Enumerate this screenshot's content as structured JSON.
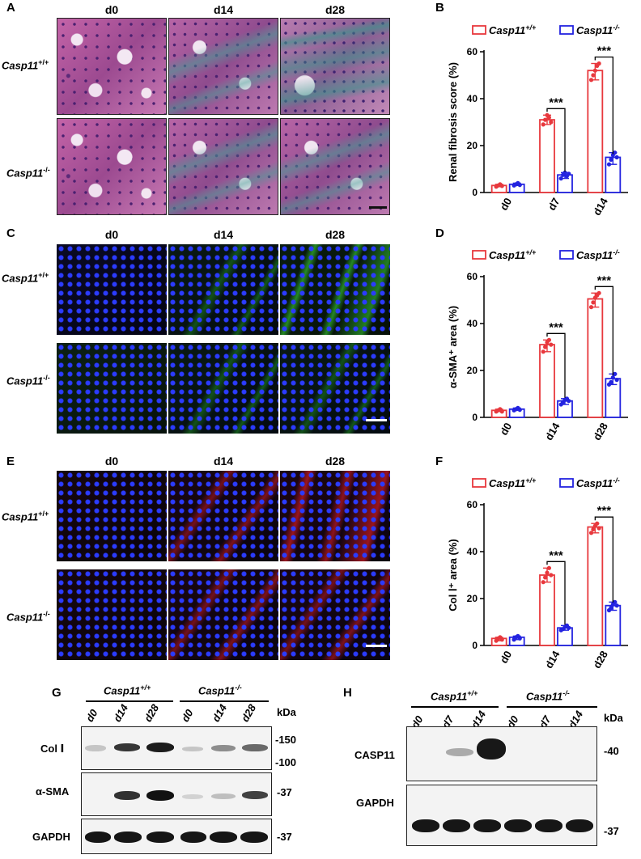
{
  "panels": {
    "A": {
      "label": "A",
      "cols": [
        "d0",
        "d14",
        "d28"
      ],
      "rows": [
        {
          "base": "Casp11",
          "sup": "+/+"
        },
        {
          "base": "Casp11",
          "sup": "-/-"
        }
      ]
    },
    "C": {
      "label": "C",
      "cols": [
        "d0",
        "d14",
        "d28"
      ],
      "rows": [
        {
          "base": "Casp11",
          "sup": "+/+"
        },
        {
          "base": "Casp11",
          "sup": "-/-"
        }
      ]
    },
    "E": {
      "label": "E",
      "cols": [
        "d0",
        "d14",
        "d28"
      ],
      "rows": [
        {
          "base": "Casp11",
          "sup": "+/+"
        },
        {
          "base": "Casp11",
          "sup": "-/-"
        }
      ]
    },
    "G": {
      "label": "G",
      "groups": [
        {
          "base": "Casp11",
          "sup": "+/+"
        },
        {
          "base": "Casp11",
          "sup": "-/-"
        }
      ],
      "lanes": [
        "d0",
        "d14",
        "d28",
        "d0",
        "d14",
        "d28"
      ],
      "unit": "kDa",
      "rows": [
        {
          "name": "Col Ⅰ",
          "markers": [
            "-150",
            "-100"
          ]
        },
        {
          "name": "α-SMA",
          "markers": [
            "-37"
          ]
        },
        {
          "name": "GAPDH",
          "markers": [
            "-37"
          ]
        }
      ]
    },
    "H": {
      "label": "H",
      "groups": [
        {
          "base": "Casp11",
          "sup": "+/+"
        },
        {
          "base": "Casp11",
          "sup": "-/-"
        }
      ],
      "lanes": [
        "d0",
        "d7",
        "d14",
        "d0",
        "d7",
        "d14"
      ],
      "unit": "kDa",
      "rows": [
        {
          "name": "CASP11",
          "markers": [
            "-40"
          ]
        },
        {
          "name": "GAPDH",
          "markers": [
            "-37"
          ]
        }
      ]
    }
  },
  "chart_data": [
    {
      "panel": "B",
      "type": "bar",
      "categories": [
        "d0",
        "d7",
        "d14"
      ],
      "ylabel": "Renal fibrosis score (%)",
      "ylim": [
        0,
        60
      ],
      "yticks": [
        0,
        20,
        40,
        60
      ],
      "series": [
        {
          "name": "Casp11+/+",
          "legend_base": "Casp11",
          "legend_sup": "+/+",
          "color": "#e8383d",
          "values": [
            3,
            31,
            52
          ],
          "points": [
            [
              2.5,
              3,
              3.5,
              2.8
            ],
            [
              29,
              31,
              33,
              32,
              30
            ],
            [
              48,
              50,
              52,
              54,
              55
            ]
          ]
        },
        {
          "name": "Casp11-/-",
          "legend_base": "Casp11",
          "legend_sup": "-/-",
          "color": "#2323e0",
          "values": [
            3.5,
            7.5,
            15
          ],
          "points": [
            [
              3,
              3.5,
              4,
              3.2
            ],
            [
              6,
              7.5,
              8.5,
              7,
              8
            ],
            [
              12,
              14,
              16,
              17,
              15
            ]
          ]
        }
      ],
      "significance": [
        {
          "category": "d7",
          "label": "***"
        },
        {
          "category": "d14",
          "label": "***"
        }
      ]
    },
    {
      "panel": "D",
      "type": "bar",
      "categories": [
        "d0",
        "d14",
        "d28"
      ],
      "ylabel": "α-SMA⁺ area (%)",
      "ylim": [
        0,
        60
      ],
      "yticks": [
        0,
        20,
        40,
        60
      ],
      "series": [
        {
          "name": "Casp11+/+",
          "legend_base": "Casp11",
          "legend_sup": "+/+",
          "color": "#e8383d",
          "values": [
            3,
            31,
            50.5
          ],
          "points": [
            [
              2.5,
              3,
              3.5,
              2.5
            ],
            [
              28,
              30,
              32,
              33,
              31
            ],
            [
              47,
              49,
              51,
              52,
              53
            ]
          ]
        },
        {
          "name": "Casp11-/-",
          "legend_base": "Casp11",
          "legend_sup": "-/-",
          "color": "#2323e0",
          "values": [
            3.5,
            7,
            16.5
          ],
          "points": [
            [
              3,
              3.5,
              4,
              3.2
            ],
            [
              5.5,
              6.5,
              7.5,
              8,
              7
            ],
            [
              14,
              15,
              17,
              18.5,
              16
            ]
          ]
        }
      ],
      "significance": [
        {
          "category": "d14",
          "label": "***"
        },
        {
          "category": "d28",
          "label": "***"
        }
      ]
    },
    {
      "panel": "F",
      "type": "bar",
      "categories": [
        "d0",
        "d14",
        "d28"
      ],
      "ylabel": "Col Ⅰ⁺ area (%)",
      "ylim": [
        0,
        60
      ],
      "yticks": [
        0,
        20,
        40,
        60
      ],
      "series": [
        {
          "name": "Casp11+/+",
          "legend_base": "Casp11",
          "legend_sup": "+/+",
          "color": "#e8383d",
          "values": [
            3,
            30,
            50.5
          ],
          "points": [
            [
              2,
              3,
              3.5,
              2.5
            ],
            [
              27,
              29,
              31,
              33,
              30
            ],
            [
              48,
              49.5,
              51,
              52,
              50
            ]
          ]
        },
        {
          "name": "Casp11-/-",
          "legend_base": "Casp11",
          "legend_sup": "-/-",
          "color": "#2323e0",
          "values": [
            3.5,
            7.5,
            17
          ],
          "points": [
            [
              2.5,
              3.5,
              4,
              3
            ],
            [
              6.5,
              7,
              8,
              8.5,
              7.5
            ],
            [
              15,
              16,
              17.5,
              18.5,
              17
            ]
          ]
        }
      ],
      "significance": [
        {
          "category": "d14",
          "label": "***"
        },
        {
          "category": "d28",
          "label": "***"
        }
      ]
    }
  ]
}
